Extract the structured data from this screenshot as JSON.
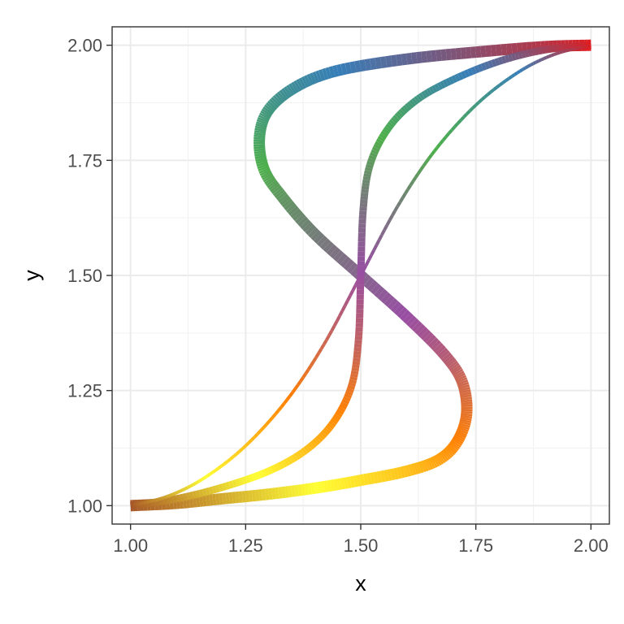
{
  "chart_data": {
    "type": "line",
    "title": "",
    "xlabel": "x",
    "ylabel": "y",
    "xlim": [
      0.96,
      2.04
    ],
    "ylim": [
      0.96,
      2.04
    ],
    "x_ticks": [
      1.0,
      1.25,
      1.5,
      1.75,
      2.0
    ],
    "y_ticks": [
      1.0,
      1.25,
      1.5,
      1.75,
      2.0
    ],
    "x_tick_labels": [
      "1.00",
      "1.25",
      "1.50",
      "1.75",
      "2.00"
    ],
    "y_tick_labels": [
      "1.00",
      "1.25",
      "1.50",
      "1.75",
      "2.00"
    ],
    "grid": true,
    "legend": "none",
    "color_scale": [
      "#a65628",
      "#ffff33",
      "#ff7f00",
      "#984ea3",
      "#4daf4a",
      "#377eb8",
      "#e41a1c"
    ],
    "series": [
      {
        "line_width": 14,
        "x": [
          1.0,
          1.1,
          1.2,
          1.3,
          1.4,
          1.5,
          1.6,
          1.67,
          1.71,
          1.73,
          1.72,
          1.68,
          1.6,
          1.5,
          1.4,
          1.33,
          1.29,
          1.28,
          1.3,
          1.36,
          1.45,
          1.6,
          1.75,
          1.9,
          2.0
        ],
        "y": [
          1.0,
          1.005,
          1.015,
          1.025,
          1.038,
          1.055,
          1.075,
          1.1,
          1.14,
          1.2,
          1.27,
          1.33,
          1.41,
          1.5,
          1.59,
          1.67,
          1.73,
          1.8,
          1.86,
          1.91,
          1.945,
          1.97,
          1.985,
          1.997,
          2.0
        ]
      },
      {
        "line_width": 9,
        "x": [
          1.0,
          1.1,
          1.2,
          1.3,
          1.38,
          1.44,
          1.48,
          1.495,
          1.5,
          1.505,
          1.52,
          1.56,
          1.62,
          1.7,
          1.8,
          1.9,
          2.0
        ],
        "y": [
          1.0,
          1.015,
          1.04,
          1.075,
          1.12,
          1.18,
          1.26,
          1.36,
          1.5,
          1.64,
          1.74,
          1.82,
          1.88,
          1.925,
          1.965,
          1.99,
          2.0
        ]
      },
      {
        "line_width": 4,
        "x": [
          1.0,
          1.08,
          1.16,
          1.25,
          1.34,
          1.42,
          1.5,
          1.58,
          1.66,
          1.75,
          1.84,
          1.92,
          2.0
        ],
        "y": [
          1.0,
          1.02,
          1.06,
          1.13,
          1.23,
          1.35,
          1.5,
          1.65,
          1.77,
          1.87,
          1.94,
          1.98,
          2.0
        ]
      }
    ]
  }
}
